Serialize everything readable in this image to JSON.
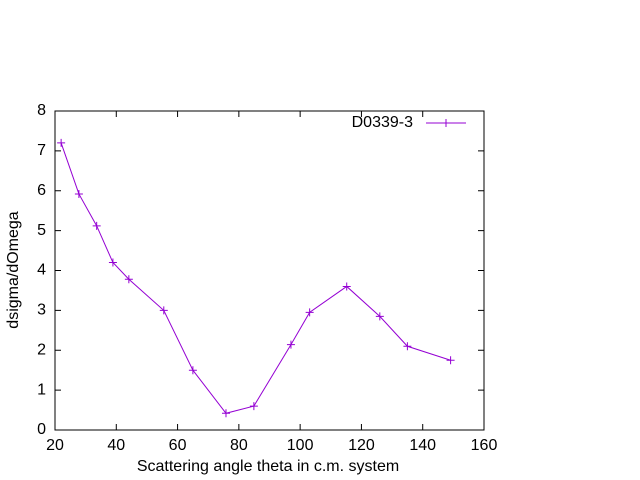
{
  "chart_data": {
    "type": "line",
    "xlabel": "Scattering angle theta in c.m. system",
    "ylabel": "dsigma/dOmega",
    "series": [
      {
        "name": "D0339-3",
        "color": "#9400d3",
        "x": [
          22,
          27.8,
          33.6,
          38.9,
          44.1,
          55.5,
          65,
          75.8,
          84.9,
          97,
          103.1,
          115.2,
          126,
          135,
          149.1
        ],
        "values": [
          7.2,
          5.92,
          5.12,
          4.2,
          3.78,
          3.0,
          1.5,
          0.42,
          0.6,
          2.14,
          2.95,
          3.6,
          2.85,
          2.1,
          1.75
        ]
      }
    ],
    "xlim": [
      20,
      160
    ],
    "xticks": [
      20,
      40,
      60,
      80,
      100,
      120,
      140,
      160
    ],
    "ylim": [
      0,
      8
    ],
    "yticks": [
      0,
      1,
      2,
      3,
      4,
      5,
      6,
      7,
      8
    ],
    "legend": "top-right",
    "grid": false
  }
}
